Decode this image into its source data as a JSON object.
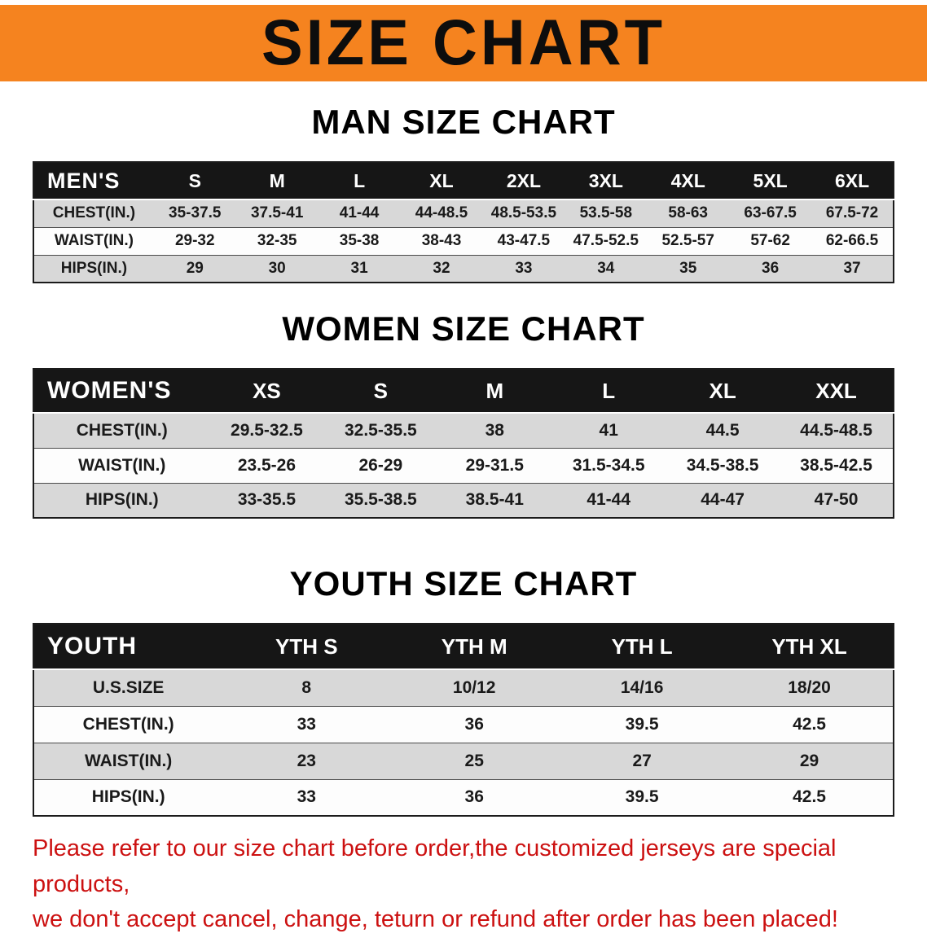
{
  "banner": {
    "title": "SIZE CHART",
    "bg_color": "#f5831f"
  },
  "sections": [
    {
      "id": "men",
      "heading": "MAN SIZE CHART",
      "table": {
        "header": [
          "MEN'S",
          "S",
          "M",
          "L",
          "XL",
          "2XL",
          "3XL",
          "4XL",
          "5XL",
          "6XL"
        ],
        "rows": [
          [
            "CHEST(IN.)",
            "35-37.5",
            "37.5-41",
            "41-44",
            "44-48.5",
            "48.5-53.5",
            "53.5-58",
            "58-63",
            "63-67.5",
            "67.5-72"
          ],
          [
            "WAIST(IN.)",
            "29-32",
            "32-35",
            "35-38",
            "38-43",
            "43-47.5",
            "47.5-52.5",
            "52.5-57",
            "57-62",
            "62-66.5"
          ],
          [
            "HIPS(IN.)",
            "29",
            "30",
            "31",
            "32",
            "33",
            "34",
            "35",
            "36",
            "37"
          ]
        ]
      }
    },
    {
      "id": "women",
      "heading": "WOMEN SIZE CHART",
      "table": {
        "header": [
          "WOMEN'S",
          "XS",
          "S",
          "M",
          "L",
          "XL",
          "XXL"
        ],
        "rows": [
          [
            "CHEST(IN.)",
            "29.5-32.5",
            "32.5-35.5",
            "38",
            "41",
            "44.5",
            "44.5-48.5"
          ],
          [
            "WAIST(IN.)",
            "23.5-26",
            "26-29",
            "29-31.5",
            "31.5-34.5",
            "34.5-38.5",
            "38.5-42.5"
          ],
          [
            "HIPS(IN.)",
            "33-35.5",
            "35.5-38.5",
            "38.5-41",
            "41-44",
            "44-47",
            "47-50"
          ]
        ]
      }
    },
    {
      "id": "youth",
      "heading": "YOUTH SIZE CHART",
      "table": {
        "header": [
          "YOUTH",
          "YTH S",
          "YTH M",
          "YTH L",
          "YTH XL"
        ],
        "rows": [
          [
            "U.S.SIZE",
            "8",
            "10/12",
            "14/16",
            "18/20"
          ],
          [
            "CHEST(IN.)",
            "33",
            "36",
            "39.5",
            "42.5"
          ],
          [
            "WAIST(IN.)",
            "23",
            "25",
            "27",
            "29"
          ],
          [
            "HIPS(IN.)",
            "33",
            "36",
            "39.5",
            "42.5"
          ]
        ]
      }
    }
  ],
  "disclaimer": {
    "line1": "Please refer to our size chart before order,the customized jerseys are special products,",
    "line2": "we don't accept cancel, change, teturn or refund after order has been placed!",
    "color": "#cc1111"
  }
}
